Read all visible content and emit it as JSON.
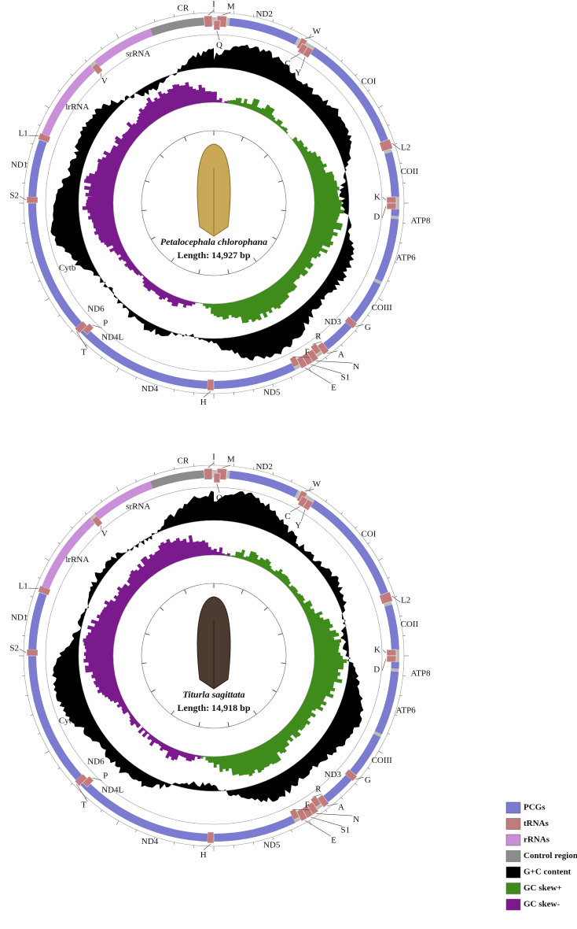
{
  "maps": [
    {
      "species": "Petalocephala chlorophana",
      "length": "Length: 14,927 bp",
      "genes": [
        "CR",
        "I",
        "M",
        "ND2",
        "W",
        "C",
        "Y",
        "Q",
        "COI",
        "L2",
        "COII",
        "K",
        "D",
        "ATP8",
        "ATP6",
        "COIII",
        "G",
        "ND3",
        "A",
        "R",
        "N",
        "S1",
        "E",
        "F",
        "ND5",
        "H",
        "ND4",
        "ND4L",
        "T",
        "P",
        "ND6",
        "Cytb",
        "S2",
        "ND1",
        "L1",
        "lrRNA",
        "V",
        "srRNA"
      ]
    },
    {
      "species": "Titurla sagittata",
      "length": "Length: 14,918 bp",
      "genes": [
        "CR",
        "I",
        "M",
        "ND2",
        "W",
        "C",
        "Y",
        "Q",
        "COI",
        "L2",
        "COII",
        "K",
        "D",
        "ATP8",
        "ATP6",
        "COIII",
        "G",
        "ND3",
        "A",
        "R",
        "N",
        "S1",
        "E",
        "F",
        "ND5",
        "H",
        "ND4",
        "ND4L",
        "T",
        "P",
        "ND6",
        "Cytb",
        "S2",
        "ND1",
        "L1",
        "lrRNA",
        "V",
        "srRNA"
      ]
    }
  ],
  "legend": [
    {
      "label": "PCGs",
      "color": "#7b7bd0"
    },
    {
      "label": "tRNAs",
      "color": "#c27b7b"
    },
    {
      "label": "rRNAs",
      "color": "#c98fd8"
    },
    {
      "label": "Control region",
      "color": "#8c8c8c"
    },
    {
      "label": "G+C content",
      "color": "#000000"
    },
    {
      "label": "GC skew+",
      "color": "#3f8c1c"
    },
    {
      "label": "GC skew-",
      "color": "#7a1a8c"
    }
  ]
}
